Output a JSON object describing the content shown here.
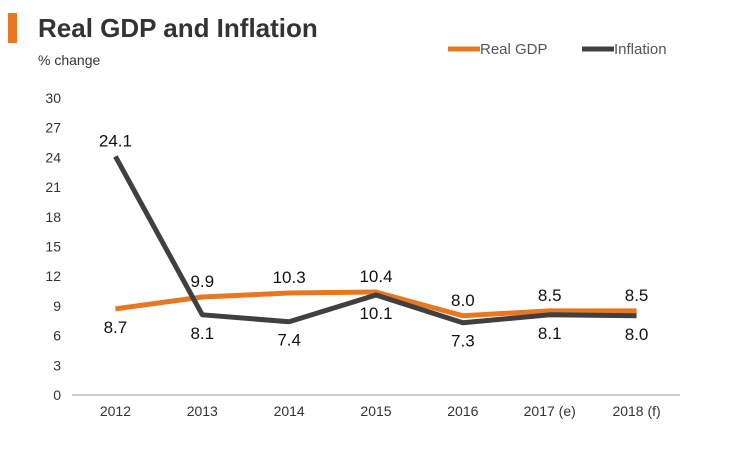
{
  "title": "Real GDP and Inflation",
  "colors": {
    "accent": "#E87722",
    "gdp": "#E87722",
    "inflation": "#404040",
    "axis": "#999999"
  },
  "chart_data": {
    "type": "line",
    "title": "Real GDP and Inflation",
    "ylabel": "% change",
    "xlabel": "",
    "categories": [
      "2012",
      "2013",
      "2014",
      "2015",
      "2016",
      "2017 (e)",
      "2018 (f)"
    ],
    "ylim": [
      0,
      30
    ],
    "yticks": [
      0,
      3,
      6,
      9,
      12,
      15,
      18,
      21,
      24,
      27,
      30
    ],
    "grid": false,
    "legend": "top-right",
    "series": [
      {
        "name": "Real GDP",
        "values": [
          8.7,
          9.9,
          10.3,
          10.4,
          8.0,
          8.5,
          8.5
        ],
        "labels": [
          "8.7",
          "9.9",
          "10.3",
          "10.4",
          "8.0",
          "8.5",
          "8.5"
        ]
      },
      {
        "name": "Inflation",
        "values": [
          24.1,
          8.1,
          7.4,
          10.1,
          7.3,
          8.1,
          8.0
        ],
        "labels": [
          "24.1",
          "8.1",
          "7.4",
          "10.1",
          "7.3",
          "8.1",
          "8.0"
        ]
      }
    ]
  }
}
